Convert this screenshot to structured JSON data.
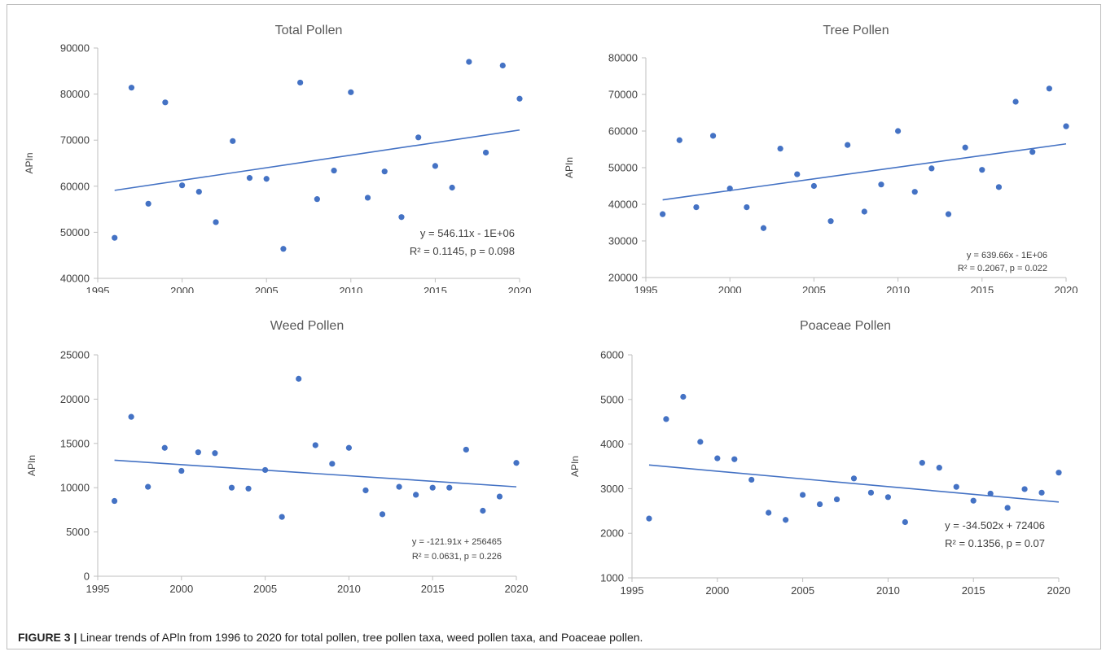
{
  "caption": {
    "label": "FIGURE 3 |",
    "text": "Linear trends of APln from 1996 to 2020 for total pollen, tree pollen taxa, weed pollen taxa, and Poaceae pollen."
  },
  "colors": {
    "marker": "#4472c4",
    "trendline": "#4472c4",
    "axis": "#bfbfbf",
    "text": "#404040"
  },
  "chart_data": [
    {
      "type": "scatter",
      "title": "Total Pollen",
      "ylabel": "APIn",
      "xlim": [
        1995,
        2020
      ],
      "ylim": [
        40000,
        90000
      ],
      "xticks": [
        "1995",
        "2000",
        "2005",
        "2010",
        "2015",
        "2020"
      ],
      "yticks": [
        "40000",
        "50000",
        "60000",
        "70000",
        "80000",
        "90000"
      ],
      "x": [
        1996,
        1997,
        1998,
        1999,
        2000,
        2001,
        2002,
        2003,
        2004,
        2005,
        2006,
        2007,
        2008,
        2009,
        2010,
        2011,
        2012,
        2013,
        2014,
        2015,
        2016,
        2017,
        2018,
        2019,
        2020
      ],
      "y": [
        48800,
        81400,
        56200,
        78200,
        60200,
        58800,
        52200,
        69800,
        61800,
        61600,
        46400,
        82500,
        57200,
        63400,
        80400,
        57500,
        63200,
        53300,
        70600,
        64400,
        59700,
        87000,
        67300,
        86200,
        79000
      ],
      "trendline": {
        "x": [
          1996,
          2020
        ],
        "y": [
          59100,
          72200
        ]
      },
      "equation": "y = 546.11x - 1E+06",
      "r2_line": "R² = 0.1145, p = 0.098"
    },
    {
      "type": "scatter",
      "title": "Tree Pollen",
      "ylabel": "APIn",
      "xlim": [
        1995,
        2020
      ],
      "ylim": [
        20000,
        80000
      ],
      "xticks": [
        "1995",
        "2000",
        "2005",
        "2010",
        "2015",
        "2020"
      ],
      "yticks": [
        "20000",
        "30000",
        "40000",
        "50000",
        "60000",
        "70000",
        "80000"
      ],
      "x": [
        1996,
        1997,
        1998,
        1999,
        2000,
        2001,
        2002,
        2003,
        2004,
        2005,
        2006,
        2007,
        2008,
        2009,
        2010,
        2011,
        2012,
        2013,
        2014,
        2015,
        2016,
        2017,
        2018,
        2019,
        2020
      ],
      "y": [
        37300,
        57500,
        39200,
        58700,
        44300,
        39200,
        33500,
        55200,
        48200,
        45000,
        35400,
        56200,
        38000,
        45400,
        60000,
        43400,
        49800,
        37300,
        55500,
        49400,
        44700,
        68000,
        54300,
        71600,
        61300
      ],
      "trendline": {
        "x": [
          1996,
          2020
        ],
        "y": [
          41200,
          56500
        ]
      },
      "equation": "y = 639.66x - 1E+06",
      "r2_line": "R² = 0.2067, p = 0.022"
    },
    {
      "type": "scatter",
      "title": "Weed Pollen",
      "ylabel": "APIn",
      "xlim": [
        1995,
        2020
      ],
      "ylim": [
        0,
        25000
      ],
      "xticks": [
        "1995",
        "2000",
        "2005",
        "2010",
        "2015",
        "2020"
      ],
      "yticks": [
        "0",
        "5000",
        "10000",
        "15000",
        "20000",
        "25000"
      ],
      "x": [
        1996,
        1997,
        1998,
        1999,
        2000,
        2001,
        2002,
        2003,
        2004,
        2005,
        2006,
        2007,
        2008,
        2009,
        2010,
        2011,
        2012,
        2013,
        2014,
        2015,
        2016,
        2017,
        2018,
        2019,
        2020
      ],
      "y": [
        8500,
        18000,
        10100,
        14500,
        11900,
        14000,
        13900,
        10000,
        9900,
        12000,
        6700,
        22300,
        14800,
        12700,
        14500,
        9700,
        7000,
        10100,
        9200,
        10000,
        10000,
        14300,
        7400,
        9000,
        12800
      ],
      "trendline": {
        "x": [
          1996,
          2020
        ],
        "y": [
          13100,
          10100
        ]
      },
      "equation": "y = -121.91x + 256465",
      "r2_line": "R² = 0.0631, p = 0.226"
    },
    {
      "type": "scatter",
      "title": "Poaceae Pollen",
      "ylabel": "APIn",
      "xlim": [
        1995,
        2020
      ],
      "ylim": [
        1000,
        6000
      ],
      "xticks": [
        "1995",
        "2000",
        "2005",
        "2010",
        "2015",
        "2020"
      ],
      "yticks": [
        "1000",
        "2000",
        "3000",
        "4000",
        "5000",
        "6000"
      ],
      "x": [
        1996,
        1997,
        1998,
        1999,
        2000,
        2001,
        2002,
        2003,
        2004,
        2005,
        2006,
        2007,
        2008,
        2009,
        2010,
        2011,
        2012,
        2013,
        2014,
        2015,
        2016,
        2017,
        2018,
        2019,
        2020
      ],
      "y": [
        2330,
        4560,
        5060,
        4050,
        3680,
        3660,
        3200,
        2460,
        2300,
        2860,
        2650,
        2760,
        3230,
        2910,
        2810,
        2250,
        3580,
        3470,
        3040,
        2730,
        2890,
        2570,
        2990,
        2910,
        3360
      ],
      "trendline": {
        "x": [
          1996,
          2020
        ],
        "y": [
          3530,
          2700
        ]
      },
      "equation": "y = -34.502x + 72406",
      "r2_line": "R² = 0.1356, p = 0.07"
    }
  ]
}
